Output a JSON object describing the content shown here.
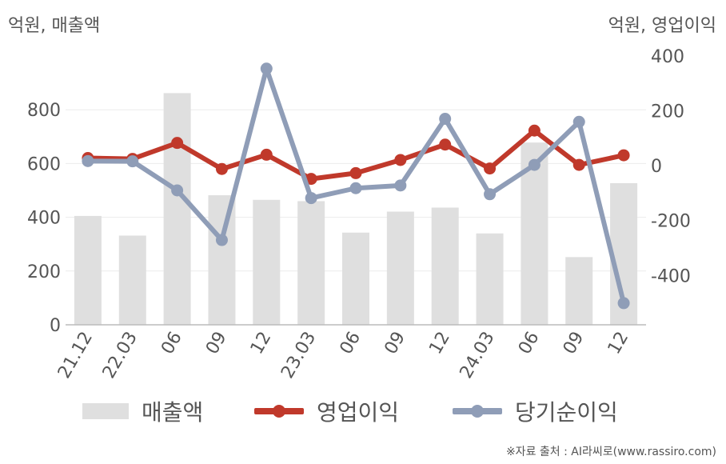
{
  "chart_data": {
    "type": "bar+line",
    "left_axis_label": "억원, 매출액",
    "right_axis_label": "억원, 영업이익",
    "categories": [
      "21.12",
      "22.03",
      "06",
      "09",
      "12",
      "23.03",
      "06",
      "09",
      "12",
      "24.03",
      "06",
      "09",
      "12"
    ],
    "y_left": {
      "min": 0,
      "max": 1000,
      "ticks": [
        0,
        200,
        400,
        600,
        800
      ]
    },
    "y_right": {
      "min": -580,
      "max": 400,
      "ticks": [
        -400,
        -200,
        0,
        200,
        400
      ]
    },
    "grid": true,
    "series": [
      {
        "name": "매출액",
        "kind": "bar",
        "axis": "left",
        "color": "#dfdfdf",
        "values": [
          405,
          332,
          862,
          482,
          465,
          460,
          343,
          421,
          436,
          340,
          678,
          252,
          527
        ]
      },
      {
        "name": "영업이익",
        "kind": "line",
        "axis": "right",
        "color": "#c0392b",
        "values": [
          28,
          25,
          83,
          -12,
          40,
          -48,
          -27,
          21,
          77,
          -10,
          128,
          3,
          38
        ]
      },
      {
        "name": "당기순이익",
        "kind": "line",
        "axis": "right",
        "color": "#8f9db7",
        "values": [
          17,
          16,
          -90,
          -271,
          354,
          -118,
          -82,
          -72,
          171,
          -104,
          3,
          160,
          -501
        ]
      }
    ]
  },
  "source": "※자료 출처 : AI라씨로(www.rassiro.com)"
}
